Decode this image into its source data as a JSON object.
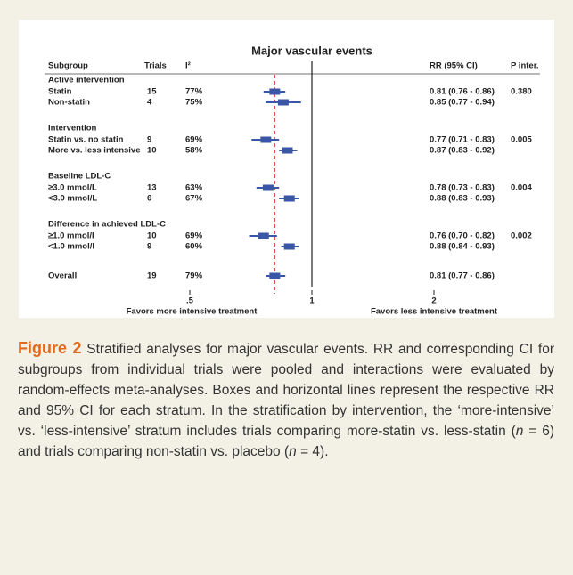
{
  "chart_data": {
    "type": "forest",
    "title": "Major vascular events",
    "columns": [
      "Subgroup",
      "Trials",
      "I²",
      "RR (95% CI)",
      "P inter."
    ],
    "groups": [
      {
        "title": "Active intervention",
        "rows": [
          {
            "label": "Statin",
            "trials": 15,
            "i2": "77%",
            "rr": 0.81,
            "lower": 0.76,
            "upper": 0.86,
            "ci_label": "0.81 (0.76 - 0.86)",
            "p": "0.380"
          },
          {
            "label": "Non-statin",
            "trials": 4,
            "i2": "75%",
            "rr": 0.85,
            "lower": 0.77,
            "upper": 0.94,
            "ci_label": "0.85 (0.77 - 0.94)"
          }
        ]
      },
      {
        "title": "Intervention",
        "rows": [
          {
            "label": "Statin vs. no statin",
            "trials": 9,
            "i2": "69%",
            "rr": 0.77,
            "lower": 0.71,
            "upper": 0.83,
            "ci_label": "0.77 (0.71 - 0.83)",
            "p": "0.005"
          },
          {
            "label": "More vs. less intensive",
            "trials": 10,
            "i2": "58%",
            "rr": 0.87,
            "lower": 0.83,
            "upper": 0.92,
            "ci_label": "0.87 (0.83 - 0.92)"
          }
        ]
      },
      {
        "title": "Baseline LDL-C",
        "rows": [
          {
            "label": "≥3.0 mmol/L",
            "trials": 13,
            "i2": "63%",
            "rr": 0.78,
            "lower": 0.73,
            "upper": 0.83,
            "ci_label": "0.78 (0.73 - 0.83)",
            "p": "0.004"
          },
          {
            "label": "<3.0 mmol/L",
            "trials": 6,
            "i2": "67%",
            "rr": 0.88,
            "lower": 0.83,
            "upper": 0.93,
            "ci_label": "0.88 (0.83 - 0.93)"
          }
        ]
      },
      {
        "title": "Difference in achieved LDL-C",
        "rows": [
          {
            "label": "≥1.0 mmol/l",
            "trials": 10,
            "i2": "69%",
            "rr": 0.76,
            "lower": 0.7,
            "upper": 0.82,
            "ci_label": "0.76 (0.70 - 0.82)",
            "p": "0.002"
          },
          {
            "label": "<1.0 mmol/l",
            "trials": 9,
            "i2": "60%",
            "rr": 0.88,
            "lower": 0.84,
            "upper": 0.93,
            "ci_label": "0.88 (0.84 - 0.93)"
          }
        ]
      }
    ],
    "overall": {
      "label": "Overall",
      "trials": 19,
      "i2": "79%",
      "rr": 0.81,
      "lower": 0.77,
      "upper": 0.86,
      "ci_label": "0.81 (0.77 - 0.86)"
    },
    "xscale": "log",
    "xlim": [
      0.5,
      2
    ],
    "xticks": [
      {
        "value": 0.5,
        "label": ".5"
      },
      1,
      2
    ],
    "reference_line": 1,
    "xlabel_left": "Favors more intensive treatment",
    "xlabel_right": "Favors less intensive treatment",
    "color": "#3a56a6",
    "pooled_line_color": "#d9342b"
  },
  "caption": {
    "label": "Figure 2",
    "segments": [
      {
        "text": " Stratified analyses for major vascular events. RR and corresponding CI for subgroups from individual trials were pooled and interactions were evaluated by random-effects meta-analyses. Boxes and horizontal lines represent the respective RR and 95% CI for each stratum. In the stratification by intervention, the ‘more-intensive’ vs. ‘less-intensive’ stratum includes trials comparing more-statin vs. less-statin (",
        "style": "normal"
      },
      {
        "text": "n",
        "style": "italic"
      },
      {
        "text": " = 6) and trials comparing non-statin vs. placebo (",
        "style": "normal"
      },
      {
        "text": "n",
        "style": "italic"
      },
      {
        "text": " = 4).",
        "style": "normal"
      }
    ]
  }
}
